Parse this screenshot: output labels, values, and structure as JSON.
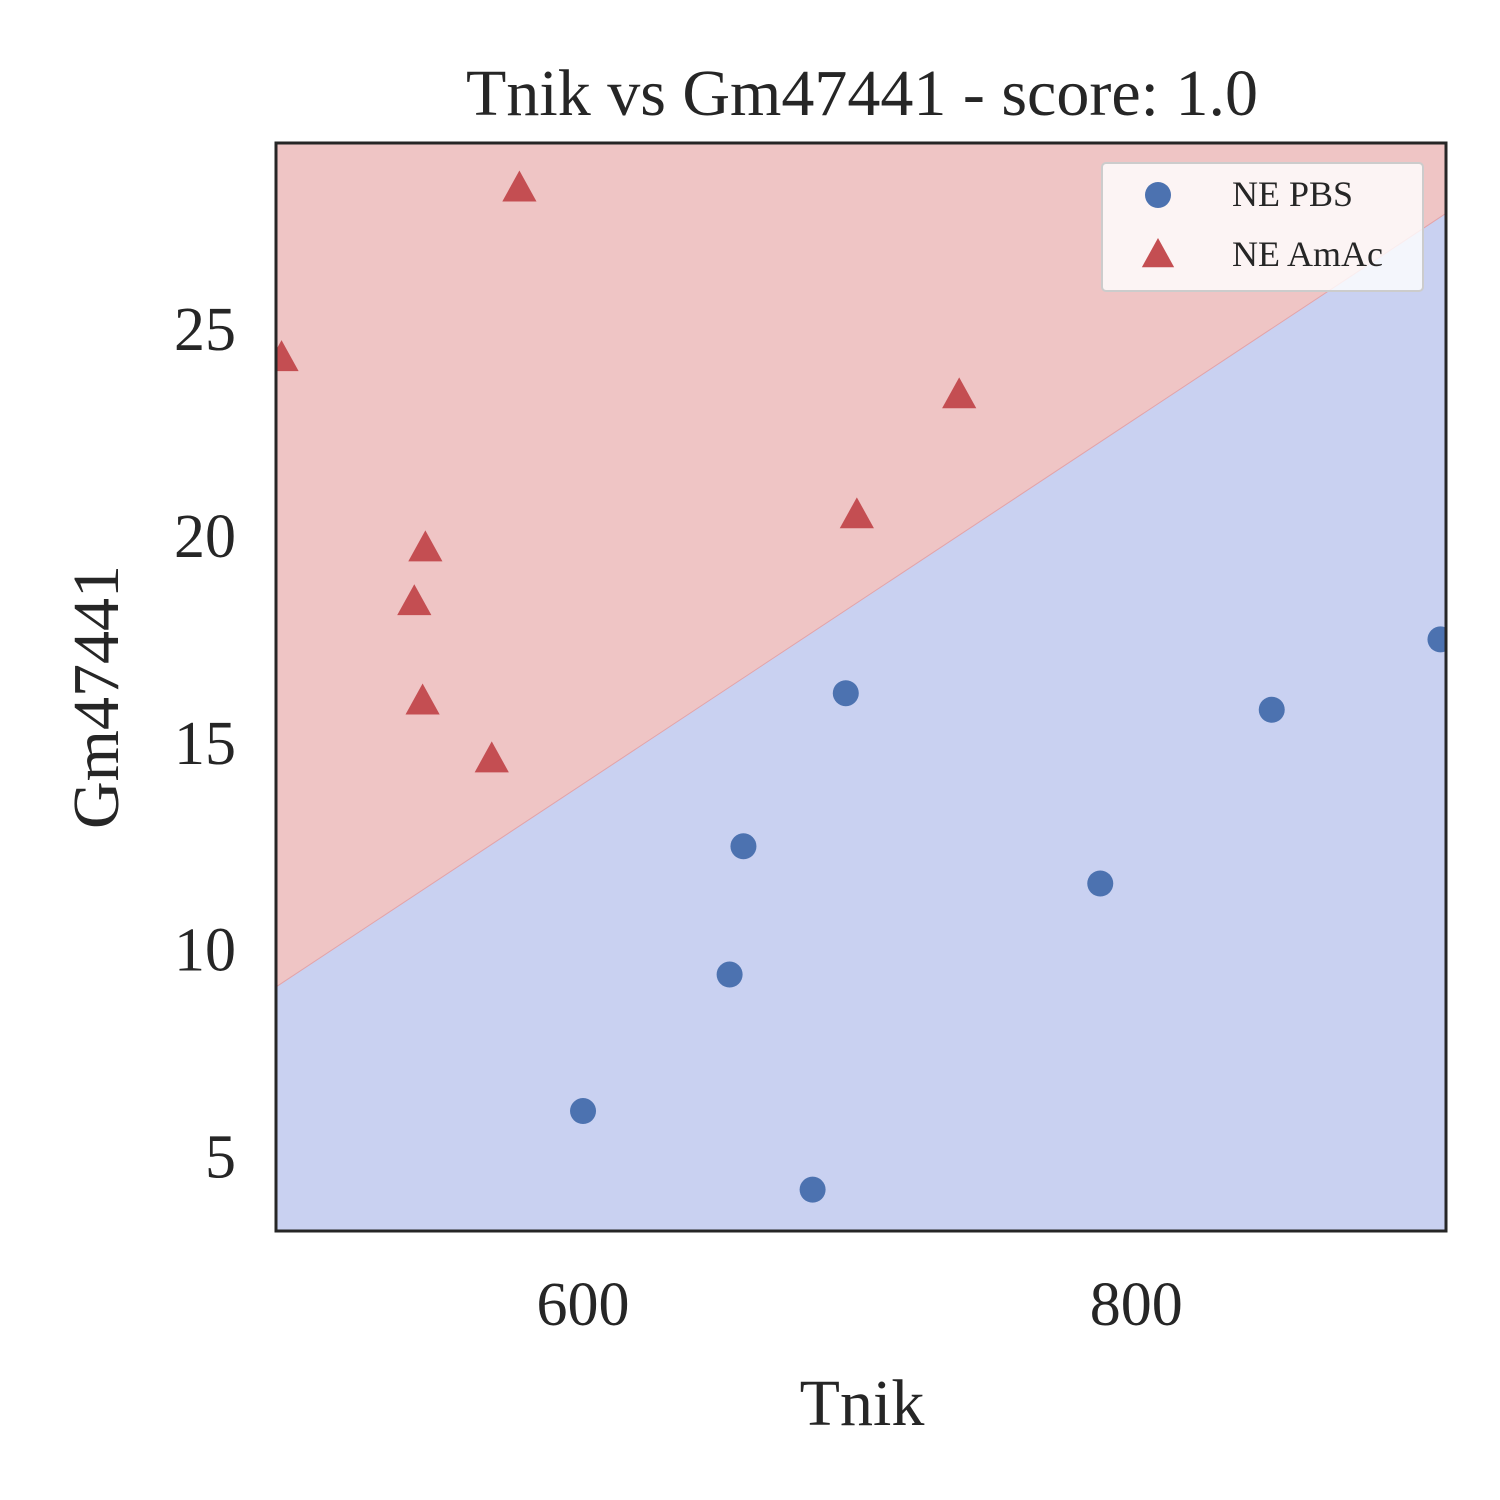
{
  "chart_data": {
    "type": "scatter",
    "title": "Tnik vs Gm47441 - score: 1.0",
    "xlabel": "Tnik",
    "ylabel": "Gm47441",
    "xlim": [
      489,
      912
    ],
    "ylim": [
      3.2,
      29.5
    ],
    "x_ticks": [
      600,
      800
    ],
    "y_ticks": [
      5,
      10,
      15,
      20,
      25
    ],
    "grid": false,
    "legend_position": "top-right",
    "decision_boundary": {
      "description": "linear boundary separating regions",
      "points": [
        [
          489,
          9.1
        ],
        [
          912,
          27.8
        ]
      ],
      "region_above_color": "#efc5c5",
      "region_below_color": "#c9d1f1"
    },
    "series": [
      {
        "name": "NE PBS",
        "marker": "circle",
        "color": "#4c72b0",
        "points": [
          [
            600,
            6.1
          ],
          [
            653,
            9.4
          ],
          [
            658,
            12.5
          ],
          [
            683,
            4.2
          ],
          [
            695,
            16.2
          ],
          [
            787,
            11.6
          ],
          [
            849,
            15.8
          ],
          [
            910,
            17.5
          ]
        ]
      },
      {
        "name": "NE AmAc",
        "marker": "triangle",
        "color": "#c44e52",
        "points": [
          [
            491,
            24.3
          ],
          [
            539,
            18.4
          ],
          [
            542,
            16.0
          ],
          [
            543,
            19.7
          ],
          [
            567,
            14.6
          ],
          [
            577,
            28.4
          ],
          [
            699,
            20.5
          ],
          [
            736,
            23.4
          ]
        ]
      }
    ]
  }
}
